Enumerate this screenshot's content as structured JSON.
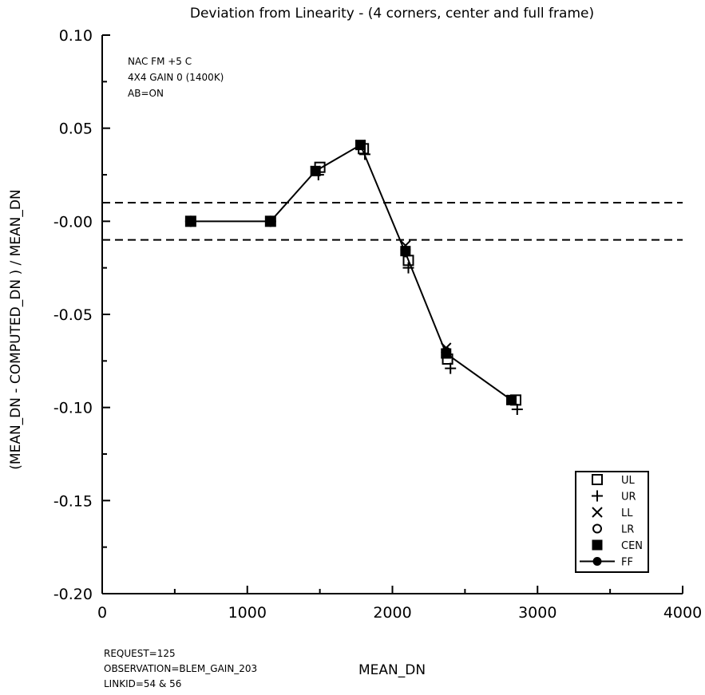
{
  "chart_data": {
    "type": "line",
    "title": "Deviation from Linearity - (4 corners, center and full frame)",
    "xlabel": "MEAN_DN",
    "ylabel": "(MEAN_DN - COMPUTED_DN ) / MEAN_DN",
    "xlim": [
      0,
      4000
    ],
    "ylim": [
      -0.2,
      0.1
    ],
    "x_ticks": [
      {
        "value": 0,
        "label": "0"
      },
      {
        "value": 1000,
        "label": "1000"
      },
      {
        "value": 2000,
        "label": "2000"
      },
      {
        "value": 3000,
        "label": "3000"
      },
      {
        "value": 4000,
        "label": "4000"
      }
    ],
    "y_ticks": [
      {
        "value": 0.1,
        "label": "0.10"
      },
      {
        "value": 0.05,
        "label": "0.05"
      },
      {
        "value": 0.0,
        "label": "-0.00"
      },
      {
        "value": -0.05,
        "label": "-0.05"
      },
      {
        "value": -0.1,
        "label": "-0.10"
      },
      {
        "value": -0.15,
        "label": "-0.15"
      },
      {
        "value": -0.2,
        "label": "-0.20"
      }
    ],
    "x_minor_step": 500,
    "y_minor_step": 0.025,
    "grid": false,
    "reference_lines": [
      0.01,
      -0.01
    ],
    "annotations": [
      "NAC FM   +5 C",
      "4X4 GAIN 0 (1400K)",
      "AB=ON"
    ],
    "footer_notes": [
      "REQUEST=125",
      "OBSERVATION=BLEM_GAIN_203",
      "LINKID=54 & 56"
    ],
    "legend_position": "bottom-right",
    "series": [
      {
        "name": "UL",
        "marker": "open-square",
        "x": [
          610,
          1160,
          1500,
          1800,
          2110,
          2380,
          2850
        ],
        "y": [
          0.0,
          0.0,
          0.029,
          0.039,
          -0.021,
          -0.074,
          -0.096
        ]
      },
      {
        "name": "UR",
        "marker": "plus",
        "x": [
          610,
          1160,
          1490,
          1810,
          2110,
          2400,
          2860
        ],
        "y": [
          0.0,
          0.0,
          0.025,
          0.036,
          -0.025,
          -0.079,
          -0.101
        ]
      },
      {
        "name": "LL",
        "marker": "x-cross",
        "x": [
          610,
          1160,
          1470,
          1780,
          2090,
          2370,
          2820
        ],
        "y": [
          0.0,
          0.0,
          0.027,
          0.041,
          -0.013,
          -0.068,
          -0.096
        ]
      },
      {
        "name": "LR",
        "marker": "open-circle",
        "x": [
          610,
          1160,
          1470,
          1780,
          2090,
          2370,
          2820
        ],
        "y": [
          0.0,
          0.0,
          0.027,
          0.041,
          -0.016,
          -0.07,
          -0.096
        ]
      },
      {
        "name": "CEN",
        "marker": "filled-square",
        "x": [
          610,
          1160,
          1470,
          1780,
          2090,
          2370,
          2820
        ],
        "y": [
          0.0,
          0.0,
          0.027,
          0.041,
          -0.016,
          -0.071,
          -0.096
        ]
      },
      {
        "name": "FF",
        "marker": "filled-circle-line",
        "x": [
          610,
          1160,
          1470,
          1780,
          2090,
          2370,
          2820
        ],
        "y": [
          0.0,
          0.0,
          0.027,
          0.041,
          -0.017,
          -0.071,
          -0.096
        ]
      }
    ]
  },
  "colors": {
    "foreground": "#000000",
    "background": "#ffffff"
  }
}
